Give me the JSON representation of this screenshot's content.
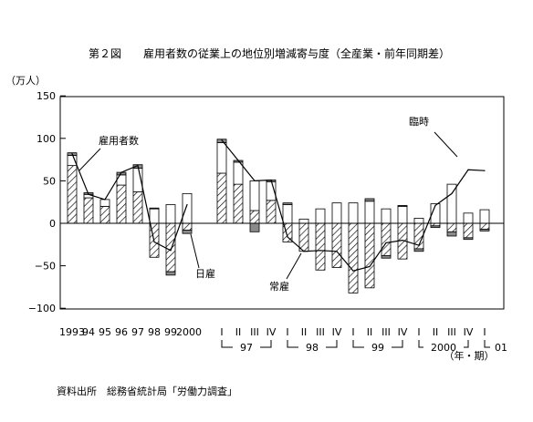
{
  "chart_data": {
    "type": "bar",
    "title": "第２図　　雇用者数の従業上の地位別増減寄与度（全産業・前年同期差）",
    "ylabel": "（万人）",
    "ylim": [
      -100,
      150
    ],
    "yticks": [
      "150",
      "100",
      "50",
      "0",
      "−50",
      "−100"
    ],
    "grid": false,
    "x_unit_label": "（年・期）",
    "source": "資料出所　総務省統計局「労働力調査」",
    "categories": [
      "1993",
      "94",
      "95",
      "96",
      "97",
      "98",
      "99",
      "2000",
      "1997 I",
      "1997 II",
      "1997 III",
      "1997 IV",
      "1998 I",
      "1998 II",
      "1998 III",
      "1998 IV",
      "1999 I",
      "1999 II",
      "1999 III",
      "1999 IV",
      "2000 I",
      "2000 II",
      "2000 III",
      "2000 IV",
      "2001 I"
    ],
    "annual_tick_labels": [
      "1993",
      "94",
      "95",
      "96",
      "97",
      "98",
      "99",
      "2000"
    ],
    "quarter_tick_labels": [
      "I",
      "II",
      "III",
      "IV",
      "I",
      "II",
      "III",
      "IV",
      "I",
      "II",
      "III",
      "IV",
      "I",
      "II",
      "III",
      "IV",
      "I"
    ],
    "year_group_labels": [
      "97",
      "98",
      "99",
      "2000",
      "01"
    ],
    "series": [
      {
        "name": "常雇",
        "values": [
          68,
          30,
          20,
          45,
          37,
          -40,
          -57,
          -8,
          59,
          46,
          15,
          27,
          -22,
          -33,
          -55,
          -52,
          -82,
          -76,
          -38,
          -42,
          -30,
          -3,
          -10,
          -17,
          -7
        ]
      },
      {
        "name": "臨時",
        "values": [
          12,
          4,
          8,
          12,
          28,
          17,
          22,
          35,
          36,
          26,
          35,
          22,
          22,
          5,
          17,
          24,
          24,
          26,
          17,
          20,
          6,
          23,
          46,
          12,
          16
        ]
      },
      {
        "name": "日雇",
        "values": [
          3,
          2,
          0,
          3,
          4,
          1,
          -4,
          -4,
          4,
          2,
          -10,
          2,
          2,
          0,
          0,
          0,
          0,
          3,
          -3,
          1,
          -3,
          -2,
          -5,
          -2,
          -2
        ]
      },
      {
        "name": "雇用者数",
        "values": [
          82,
          34,
          28,
          60,
          68,
          -22,
          -32,
          22,
          98,
          74,
          50,
          51,
          -16,
          -33,
          -32,
          -33,
          -56,
          -51,
          -23,
          -20,
          -26,
          21,
          35,
          63,
          62
        ]
      }
    ]
  }
}
